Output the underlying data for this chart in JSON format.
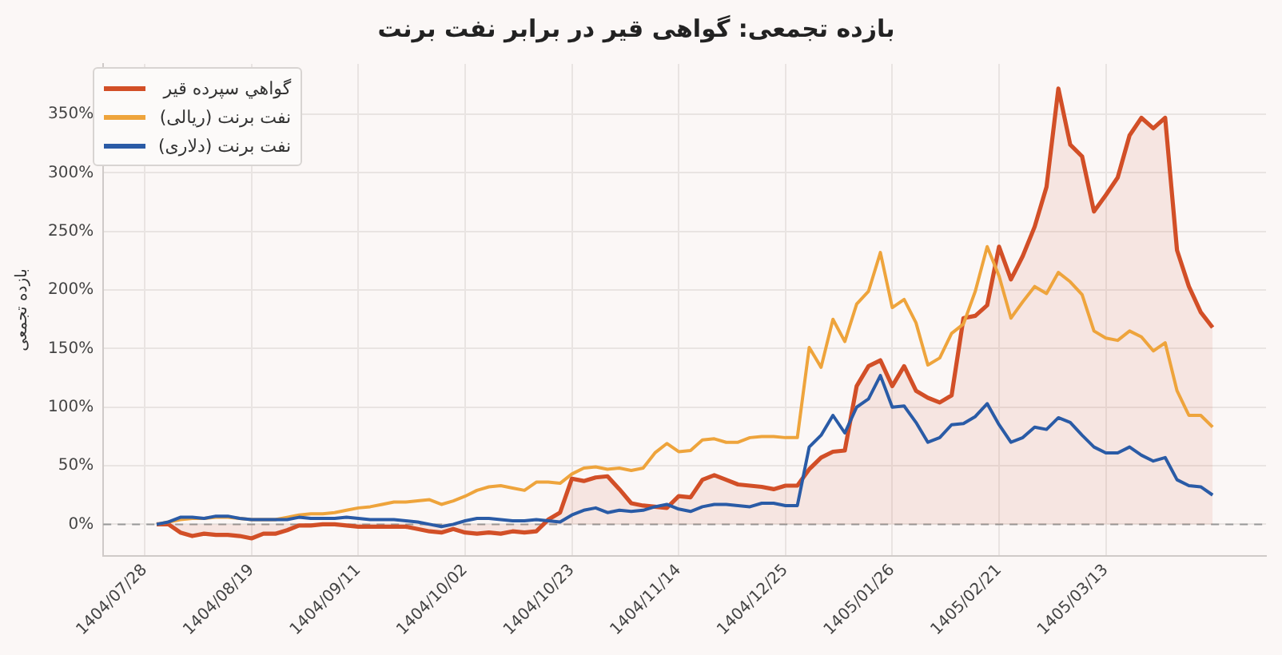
{
  "chart_data": {
    "type": "line",
    "title": "بازده تجمعی: گواهی قیر در برابر نفت برنت",
    "ylabel": "بازده تجمعی",
    "categories": [
      null,
      null,
      null,
      "1404/07/28",
      null,
      null,
      null,
      null,
      null,
      null,
      null,
      null,
      "1404/08/19",
      null,
      null,
      null,
      null,
      null,
      null,
      null,
      null,
      "1404/09/11",
      null,
      null,
      null,
      null,
      null,
      null,
      null,
      null,
      "1404/10/02",
      null,
      null,
      null,
      null,
      null,
      null,
      null,
      null,
      "1404/10/23",
      null,
      null,
      null,
      null,
      null,
      null,
      null,
      null,
      "1404/11/14",
      null,
      null,
      null,
      null,
      null,
      null,
      null,
      null,
      "1404/12/25",
      null,
      null,
      null,
      null,
      null,
      null,
      null,
      null,
      "1405/01/26",
      null,
      null,
      null,
      null,
      null,
      null,
      null,
      null,
      "1405/02/21",
      null,
      null,
      null,
      null,
      null,
      null,
      null,
      null,
      "1405/03/13",
      null,
      null,
      null,
      null,
      null,
      null,
      null,
      null,
      null,
      null,
      null,
      null,
      null
    ],
    "series": [
      {
        "name": "گواهي سپرده قير",
        "type": "area",
        "color": "#d24f27",
        "values": [
          null,
          null,
          null,
          null,
          0,
          0,
          -7,
          -10,
          -8,
          -9,
          -9,
          -10,
          -12,
          -8,
          -8,
          -5,
          -1,
          -1,
          0,
          0,
          -1,
          -2,
          -2,
          -2,
          -2,
          -2,
          -4,
          -6,
          -7,
          -4,
          -7,
          -8,
          -7,
          -8,
          -6,
          -7,
          -6,
          4,
          10,
          39,
          37,
          40,
          41,
          30,
          18,
          16,
          15,
          14,
          24,
          23,
          38,
          42,
          38,
          34,
          33,
          32,
          30,
          33,
          33,
          47,
          57,
          62,
          63,
          118,
          135,
          140,
          118,
          135,
          114,
          108,
          104,
          110,
          176,
          178,
          187,
          237,
          209,
          229,
          254,
          288,
          372,
          324,
          314,
          267,
          281,
          296,
          332,
          347,
          338,
          347,
          234,
          203,
          181,
          168,
          null,
          null,
          null,
          null
        ]
      },
      {
        "name": "نفت برنت (ريالی)",
        "type": "line",
        "color": "#eea43c",
        "values": [
          null,
          null,
          null,
          null,
          0,
          2,
          4,
          5,
          5,
          6,
          6,
          5,
          4,
          4,
          4,
          6,
          8,
          9,
          9,
          10,
          12,
          14,
          15,
          17,
          19,
          19,
          20,
          21,
          17,
          20,
          24,
          29,
          32,
          33,
          31,
          29,
          36,
          36,
          35,
          43,
          48,
          49,
          47,
          48,
          46,
          48,
          61,
          69,
          62,
          63,
          72,
          73,
          70,
          70,
          74,
          75,
          75,
          74,
          74,
          151,
          134,
          175,
          156,
          188,
          199,
          232,
          185,
          192,
          172,
          136,
          142,
          163,
          171,
          199,
          237,
          212,
          176,
          190,
          203,
          197,
          215,
          207,
          196,
          165,
          159,
          157,
          165,
          160,
          148,
          155,
          114,
          93,
          93,
          83,
          null,
          null,
          null,
          null
        ]
      },
      {
        "name": "نفت برنت (دلاری)",
        "type": "line",
        "color": "#2a5ba6",
        "values": [
          null,
          null,
          null,
          null,
          0,
          2,
          6,
          6,
          5,
          7,
          7,
          5,
          4,
          4,
          4,
          4,
          6,
          5,
          5,
          5,
          6,
          5,
          4,
          4,
          4,
          3,
          2,
          0,
          -2,
          0,
          3,
          5,
          5,
          4,
          3,
          3,
          4,
          3,
          2,
          8,
          12,
          14,
          10,
          12,
          11,
          12,
          15,
          17,
          13,
          11,
          15,
          17,
          17,
          16,
          15,
          18,
          18,
          16,
          16,
          66,
          76,
          93,
          78,
          100,
          107,
          127,
          100,
          101,
          87,
          70,
          74,
          85,
          86,
          92,
          103,
          85,
          70,
          74,
          83,
          81,
          91,
          87,
          76,
          66,
          61,
          61,
          66,
          59,
          54,
          57,
          38,
          33,
          32,
          25,
          null,
          null,
          null,
          null
        ]
      }
    ],
    "ylim": [
      -27,
      393
    ],
    "yticks": [
      {
        "value": 0,
        "label": "0%"
      },
      {
        "value": 50,
        "label": "50%"
      },
      {
        "value": 100,
        "label": "100%"
      },
      {
        "value": 150,
        "label": "150%"
      },
      {
        "value": 200,
        "label": "200%"
      },
      {
        "value": 250,
        "label": "250%"
      },
      {
        "value": 300,
        "label": "300%"
      },
      {
        "value": 350,
        "label": "350%"
      }
    ],
    "ref_lines": [
      {
        "axis": "y",
        "value": 0,
        "color": "#999999",
        "line_style": "dashed"
      }
    ],
    "grid": true,
    "legend": "top left",
    "marker": "none",
    "line_style": "solid"
  }
}
